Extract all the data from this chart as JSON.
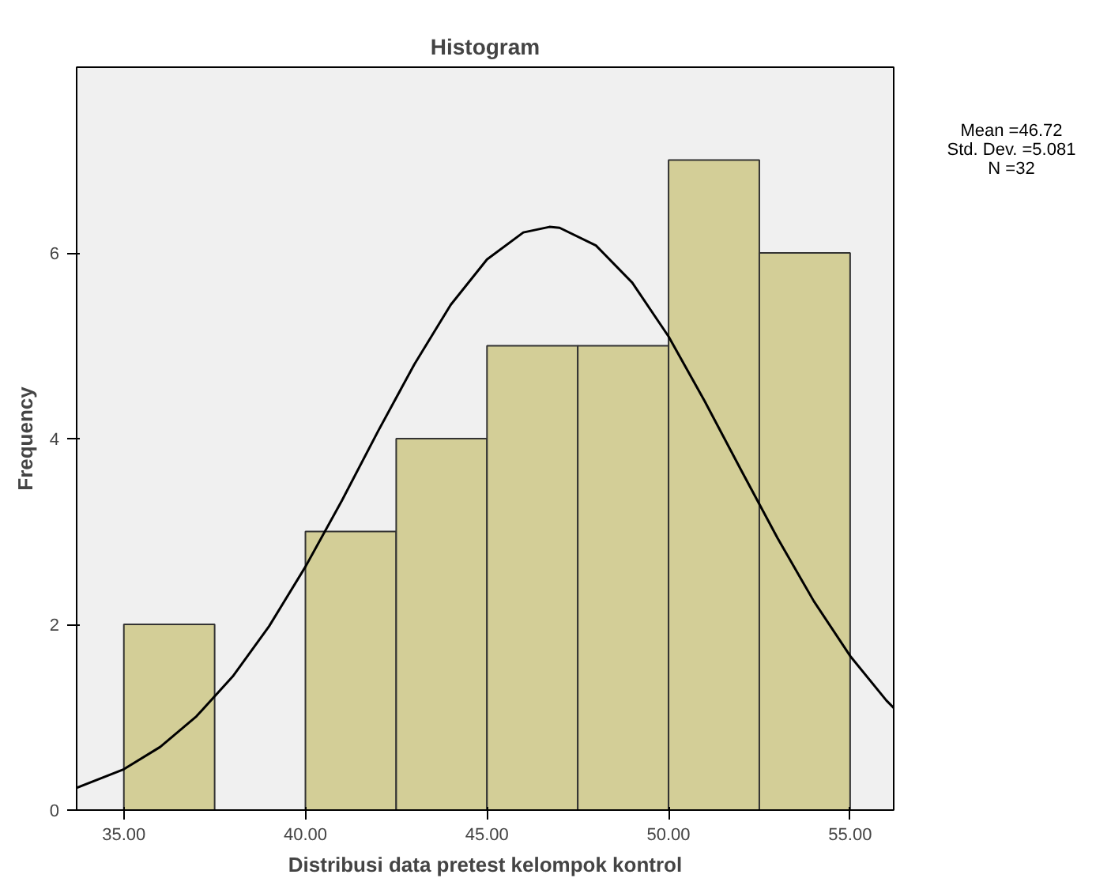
{
  "chart_data": {
    "type": "histogram",
    "title": "Histogram",
    "xlabel": "Distribusi data pretest kelompok kontrol",
    "ylabel": "Frequency",
    "bins": [
      35,
      37.5,
      40,
      42.5,
      45,
      47.5,
      50,
      52.5,
      55
    ],
    "series": [
      {
        "color": "#d3ce97",
        "values": [
          2,
          0,
          3,
          4,
          5,
          5,
          7,
          6
        ]
      },
      {
        "type": "line",
        "color": "#000000",
        "x": [
          33.7,
          35,
          36,
          37,
          38,
          39,
          40,
          41,
          42,
          43,
          44,
          45,
          46,
          46.72,
          47,
          48,
          49,
          50,
          51,
          52,
          53,
          54,
          55,
          56,
          56.2
        ],
        "values": [
          0.24,
          0.44,
          0.68,
          1.01,
          1.44,
          1.98,
          2.62,
          3.33,
          4.08,
          4.8,
          5.44,
          5.93,
          6.22,
          6.28,
          6.27,
          6.08,
          5.68,
          5.1,
          4.4,
          3.66,
          2.93,
          2.25,
          1.66,
          1.18,
          1.1
        ]
      }
    ],
    "xlim": [
      33.7,
      56.2
    ],
    "ylim": [
      0,
      8
    ],
    "xticks": [
      {
        "value": 35,
        "label": "35.00"
      },
      {
        "value": 40,
        "label": "40.00"
      },
      {
        "value": 45,
        "label": "45.00"
      },
      {
        "value": 50,
        "label": "50.00"
      },
      {
        "value": 55,
        "label": "55.00"
      }
    ],
    "yticks": [
      0,
      2,
      4,
      6
    ],
    "grid": false,
    "legend": false,
    "annotations": [
      "Mean =46.72",
      "Std. Dev. =5.081",
      "N =32"
    ]
  }
}
